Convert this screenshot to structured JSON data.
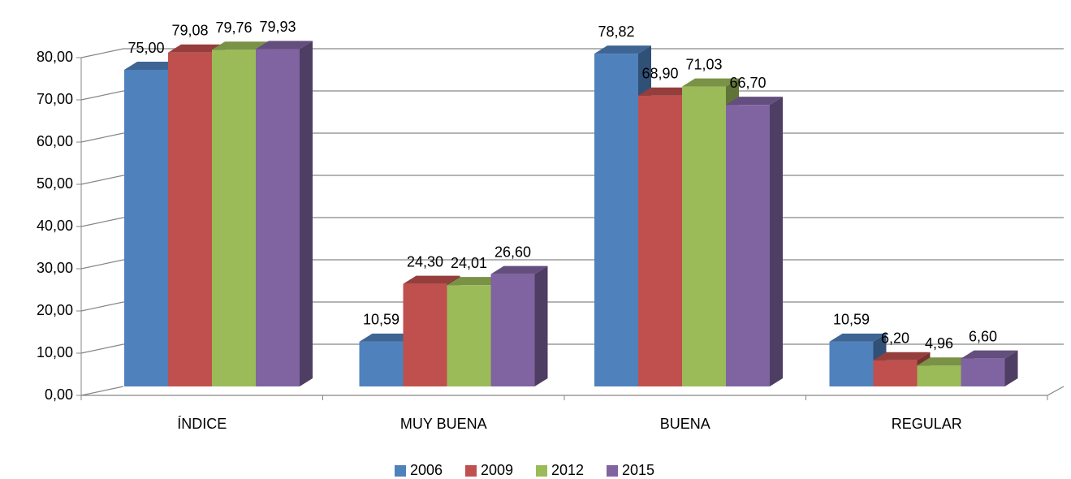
{
  "chart_data": {
    "type": "bar3d",
    "categories": [
      "ÍNDICE",
      "MUY BUENA",
      "BUENA",
      "REGULAR"
    ],
    "series": [
      {
        "name": "2006",
        "color": "#4f81bd",
        "values": [
          75.0,
          10.59,
          78.82,
          10.59
        ],
        "value_labels": [
          "75,00",
          "10,59",
          "78,82",
          "10,59"
        ]
      },
      {
        "name": "2009",
        "color": "#c0504d",
        "values": [
          79.08,
          24.3,
          68.9,
          6.2
        ],
        "value_labels": [
          "79,08",
          "24,30",
          "68,90",
          "6,20"
        ]
      },
      {
        "name": "2012",
        "color": "#9bbb59",
        "values": [
          79.76,
          24.01,
          71.03,
          4.96
        ],
        "value_labels": [
          "79,76",
          "24,01",
          "71,03",
          "4,96"
        ]
      },
      {
        "name": "2015",
        "color": "#8064a2",
        "values": [
          79.93,
          26.6,
          66.7,
          6.6
        ],
        "value_labels": [
          "79,93",
          "26,60",
          "66,70",
          "6,60"
        ]
      }
    ],
    "ylim": [
      0,
      80
    ],
    "yticks": [
      {
        "value": 0,
        "label": "0,00"
      },
      {
        "value": 10,
        "label": "10,00"
      },
      {
        "value": 20,
        "label": "20,00"
      },
      {
        "value": 30,
        "label": "30,00"
      },
      {
        "value": 40,
        "label": "40,00"
      },
      {
        "value": 50,
        "label": "50,00"
      },
      {
        "value": 60,
        "label": "60,00"
      },
      {
        "value": 70,
        "label": "70,00"
      },
      {
        "value": 80,
        "label": "80,00"
      }
    ],
    "grid": true,
    "legend": "bottom"
  }
}
